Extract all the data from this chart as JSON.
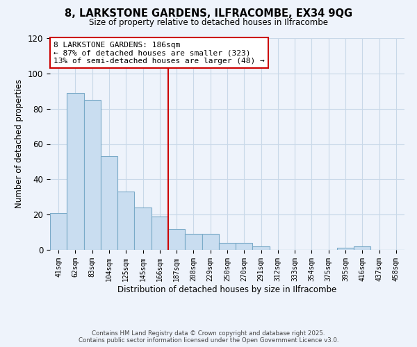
{
  "title": "8, LARKSTONE GARDENS, ILFRACOMBE, EX34 9QG",
  "subtitle": "Size of property relative to detached houses in Ilfracombe",
  "xlabel": "Distribution of detached houses by size in Ilfracombe",
  "ylabel": "Number of detached properties",
  "categories": [
    "41sqm",
    "62sqm",
    "83sqm",
    "104sqm",
    "125sqm",
    "145sqm",
    "166sqm",
    "187sqm",
    "208sqm",
    "229sqm",
    "250sqm",
    "270sqm",
    "291sqm",
    "312sqm",
    "333sqm",
    "354sqm",
    "375sqm",
    "395sqm",
    "416sqm",
    "437sqm",
    "458sqm"
  ],
  "values": [
    21,
    89,
    85,
    53,
    33,
    24,
    19,
    12,
    9,
    9,
    4,
    4,
    2,
    0,
    0,
    0,
    0,
    1,
    2,
    0,
    0
  ],
  "bar_color": "#c9ddf0",
  "bar_edge_color": "#7aaac8",
  "vline_index": 7,
  "vline_color": "#cc0000",
  "ylim": [
    0,
    120
  ],
  "yticks": [
    0,
    20,
    40,
    60,
    80,
    100,
    120
  ],
  "annotation_title": "8 LARKSTONE GARDENS: 186sqm",
  "annotation_line1": "← 87% of detached houses are smaller (323)",
  "annotation_line2": "13% of semi-detached houses are larger (48) →",
  "annotation_box_color": "#ffffff",
  "annotation_box_edge": "#cc0000",
  "grid_color": "#c8d8e8",
  "background_color": "#eef3fb",
  "footer1": "Contains HM Land Registry data © Crown copyright and database right 2025.",
  "footer2": "Contains public sector information licensed under the Open Government Licence v3.0."
}
